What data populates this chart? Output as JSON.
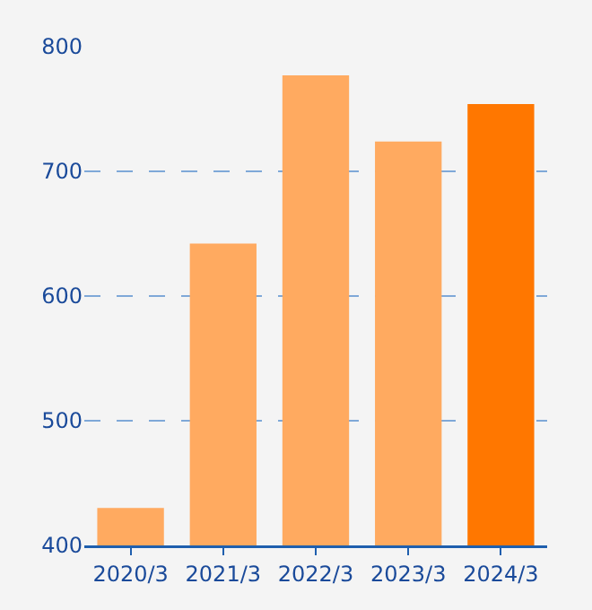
{
  "chart_data": {
    "type": "bar",
    "categories": [
      "2020/3",
      "2021/3",
      "2022/3",
      "2023/3",
      "2024/3"
    ],
    "values": [
      430,
      642,
      777,
      724,
      754
    ],
    "colors": [
      "#ffaa60",
      "#ffaa60",
      "#ffaa60",
      "#ffaa60",
      "#ff7700"
    ],
    "ylim": [
      400,
      800
    ],
    "yticks": [
      400,
      500,
      600,
      700,
      800
    ],
    "grid": "y",
    "legend": false
  }
}
